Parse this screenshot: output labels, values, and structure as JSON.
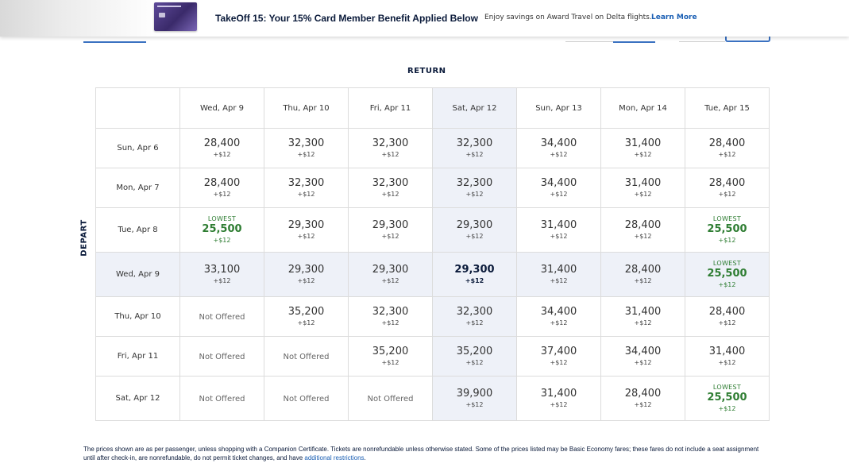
{
  "banner": {
    "title": "TakeOff 15: Your 15% Card Member Benefit Applied Below",
    "subtitle": "Enjoy savings on Award Travel on Delta flights.",
    "link": "Learn More",
    "card_icon": "credit-card-image"
  },
  "grid": {
    "return_label": "RETURN",
    "depart_label": "DEPART",
    "lowest_label": "LOWEST",
    "not_offered_label": "Not Offered",
    "return_dates": [
      "Wed, Apr 9",
      "Thu, Apr 10",
      "Fri, Apr 11",
      "Sat, Apr 12",
      "Sun, Apr 13",
      "Mon, Apr 14",
      "Tue, Apr 15"
    ],
    "rows": [
      {
        "depart": "Sun, Apr 6",
        "cells": [
          {
            "price": "28,400",
            "fee": "+$12"
          },
          {
            "price": "32,300",
            "fee": "+$12"
          },
          {
            "price": "32,300",
            "fee": "+$12"
          },
          {
            "price": "32,300",
            "fee": "+$12"
          },
          {
            "price": "34,400",
            "fee": "+$12"
          },
          {
            "price": "31,400",
            "fee": "+$12"
          },
          {
            "price": "28,400",
            "fee": "+$12"
          }
        ]
      },
      {
        "depart": "Mon, Apr 7",
        "cells": [
          {
            "price": "28,400",
            "fee": "+$12"
          },
          {
            "price": "32,300",
            "fee": "+$12"
          },
          {
            "price": "32,300",
            "fee": "+$12"
          },
          {
            "price": "32,300",
            "fee": "+$12"
          },
          {
            "price": "34,400",
            "fee": "+$12"
          },
          {
            "price": "31,400",
            "fee": "+$12"
          },
          {
            "price": "28,400",
            "fee": "+$12"
          }
        ]
      },
      {
        "depart": "Tue, Apr 8",
        "cells": [
          {
            "price": "25,500",
            "fee": "+$12",
            "lowest": true
          },
          {
            "price": "29,300",
            "fee": "+$12"
          },
          {
            "price": "29,300",
            "fee": "+$12"
          },
          {
            "price": "29,300",
            "fee": "+$12"
          },
          {
            "price": "31,400",
            "fee": "+$12"
          },
          {
            "price": "28,400",
            "fee": "+$12"
          },
          {
            "price": "25,500",
            "fee": "+$12",
            "lowest": true
          }
        ]
      },
      {
        "depart": "Wed, Apr 9",
        "highlight": true,
        "cells": [
          {
            "price": "33,100",
            "fee": "+$12"
          },
          {
            "price": "29,300",
            "fee": "+$12"
          },
          {
            "price": "29,300",
            "fee": "+$12"
          },
          {
            "price": "29,300",
            "fee": "+$12",
            "selected": true
          },
          {
            "price": "31,400",
            "fee": "+$12"
          },
          {
            "price": "28,400",
            "fee": "+$12"
          },
          {
            "price": "25,500",
            "fee": "+$12",
            "lowest": true
          }
        ]
      },
      {
        "depart": "Thu, Apr 10",
        "cells": [
          {
            "not_offered": true
          },
          {
            "price": "35,200",
            "fee": "+$12"
          },
          {
            "price": "32,300",
            "fee": "+$12"
          },
          {
            "price": "32,300",
            "fee": "+$12"
          },
          {
            "price": "34,400",
            "fee": "+$12"
          },
          {
            "price": "31,400",
            "fee": "+$12"
          },
          {
            "price": "28,400",
            "fee": "+$12"
          }
        ]
      },
      {
        "depart": "Fri, Apr 11",
        "cells": [
          {
            "not_offered": true
          },
          {
            "not_offered": true
          },
          {
            "price": "35,200",
            "fee": "+$12"
          },
          {
            "price": "35,200",
            "fee": "+$12"
          },
          {
            "price": "37,400",
            "fee": "+$12"
          },
          {
            "price": "34,400",
            "fee": "+$12"
          },
          {
            "price": "31,400",
            "fee": "+$12"
          }
        ]
      },
      {
        "depart": "Sat, Apr 12",
        "cells": [
          {
            "not_offered": true
          },
          {
            "not_offered": true
          },
          {
            "not_offered": true
          },
          {
            "price": "39,900",
            "fee": "+$12"
          },
          {
            "price": "31,400",
            "fee": "+$12"
          },
          {
            "price": "28,400",
            "fee": "+$12"
          },
          {
            "price": "25,500",
            "fee": "+$12",
            "lowest": true
          }
        ]
      }
    ],
    "highlight_col_index": 3
  },
  "disclaimer": {
    "text": "The prices shown are as per passenger, unless shopping with a Companion Certificate. Tickets are nonrefundable unless otherwise stated. Some of the prices listed may be Basic Economy fares; these fares do not include a seat assignment until after check-in, are nonrefundable, do not permit ticket changes, and have ",
    "link": "additional restrictions",
    "end": "."
  },
  "colors": {
    "navy": "#0a1a3a",
    "link_blue": "#1a5fb4",
    "lowest_green": "#2e7d32",
    "highlight_bg": "#eef1f8"
  }
}
